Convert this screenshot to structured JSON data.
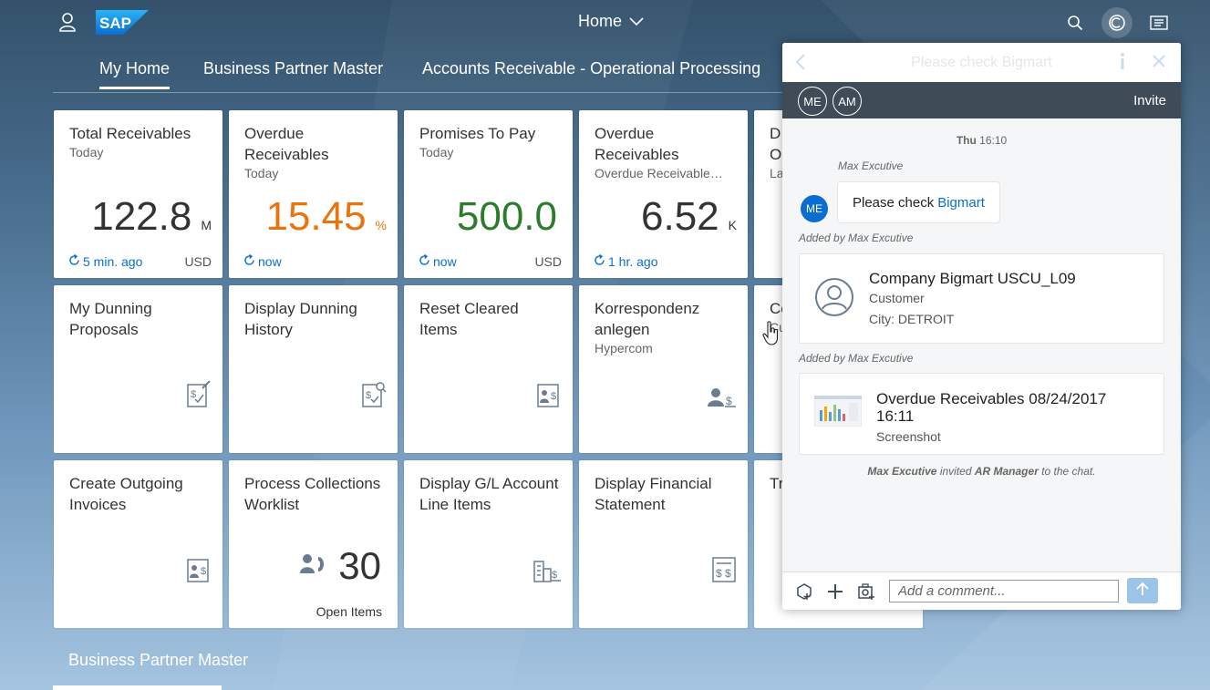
{
  "shell": {
    "logo_text": "SAP",
    "home_title": "Home",
    "icons": [
      "user-icon",
      "search-icon",
      "copilot-icon",
      "notifications-icon"
    ]
  },
  "tabs": [
    {
      "label": "My Home"
    },
    {
      "label": "Business Partner Master"
    },
    {
      "label": "Accounts Receivable - Operational Processing"
    }
  ],
  "tiles": [
    {
      "title": "Total Receivables",
      "subtitle": "Today",
      "value": "122.8",
      "unit": "M",
      "refresh": "5 min. ago",
      "currency": "USD",
      "value_color": "#333333"
    },
    {
      "title": "Overdue Receivables",
      "subtitle": "Today",
      "value": "15.45",
      "unit": "%",
      "refresh": "now",
      "currency": "",
      "value_color": "#e9730c"
    },
    {
      "title": "Promises To Pay",
      "subtitle": "Today",
      "value": "500.0",
      "unit": "",
      "refresh": "now",
      "currency": "USD",
      "value_color": "#2b7d2b"
    },
    {
      "title": "Overdue Receivables",
      "subtitle": "Overdue Receivable…",
      "value": "6.52",
      "unit": "K",
      "refresh": "1 hr. ago",
      "currency": "",
      "value_color": "#333333"
    },
    {
      "title": "D\nO",
      "subtitle": "La"
    },
    {
      "title": "My Dunning Proposals",
      "icon": "dunning-proposal-icon"
    },
    {
      "title": "Display Dunning History",
      "icon": "dunning-history-icon"
    },
    {
      "title": "Reset Cleared Items",
      "icon": "cleared-items-icon"
    },
    {
      "title": "Korrespondenz anlegen",
      "subtitle": "Hypercom",
      "icon": "correspondence-icon"
    },
    {
      "title": "Co",
      "subtitle": "Cu"
    },
    {
      "title": "Create Outgoing Invoices",
      "icon": "invoice-icon"
    },
    {
      "title": "Process Collections Worklist",
      "count": "30",
      "count_label": "Open Items",
      "icon": "call-worklist-icon"
    },
    {
      "title": "Display G/L Account Line Items",
      "icon": "gl-line-items-icon"
    },
    {
      "title": "Display Financial Statement",
      "icon": "financial-statement-icon"
    },
    {
      "title": "Tr"
    }
  ],
  "section_title": "Business Partner Master",
  "copilot": {
    "header_title": "Please check Bigmart",
    "participants": [
      "ME",
      "AM"
    ],
    "invite_label": "Invite",
    "timestamp_day": "Thu",
    "timestamp_time": "16:10",
    "sender": "Max Excutive",
    "message_text": "Please check",
    "message_link": "Bigmart",
    "sender_avatar": "ME",
    "added_by_1": "Added by Max Excutive",
    "card1": {
      "title": "Company Bigmart USCU_L09",
      "type": "Customer",
      "city": "City: DETROIT"
    },
    "added_by_2": "Added by Max Excutive",
    "card2": {
      "title": "Overdue Receivables 08/24/2017 16:11",
      "type": "Screenshot"
    },
    "invite_note": {
      "inviter": "Max Excutive",
      "middle": "invited",
      "invitee": "AR Manager",
      "end": "to the chat."
    },
    "comment_placeholder": "Add a comment..."
  }
}
